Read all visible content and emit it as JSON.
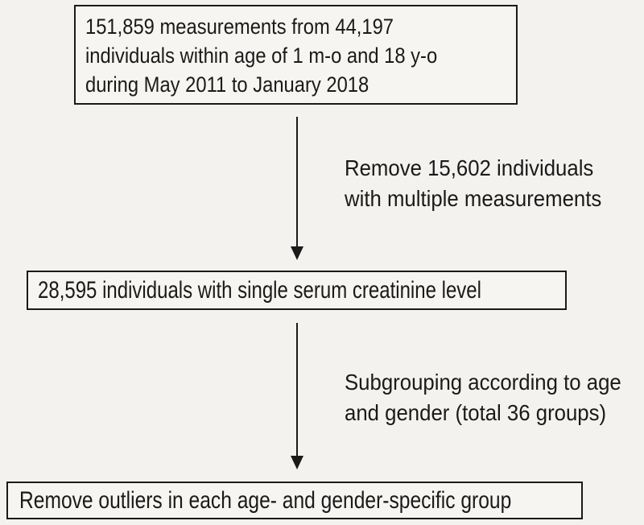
{
  "flowchart": {
    "colors": {
      "background": "#f3f2ef",
      "box_fill": "#f6f5f2",
      "border": "#1a1a1a",
      "text": "#1a1a1a"
    },
    "box_population": {
      "line1": "151,859 measurements from 44,197",
      "line2": "individuals within age of 1 m-o and 18 y-o",
      "line3": "during May 2011 to January 2018"
    },
    "annotation_multiple": {
      "line1": "Remove 15,602 individuals",
      "line2": "with multiple measurements"
    },
    "box_single": {
      "text": "28,595 individuals with single serum creatinine level"
    },
    "annotation_subgrouping": {
      "line1": "Subgrouping according to age",
      "line2": "and gender (total 36 groups)"
    },
    "box_outliers": {
      "text": "Remove outliers in each age- and gender-specific group"
    }
  }
}
